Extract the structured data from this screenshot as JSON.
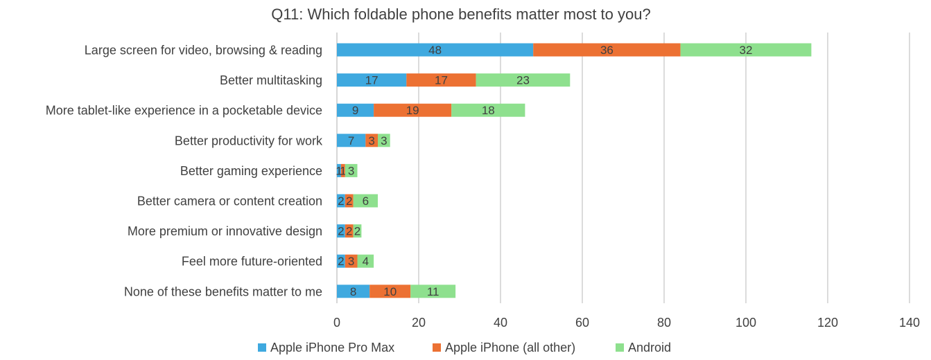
{
  "chart_data": {
    "type": "bar",
    "orientation": "horizontal",
    "stacked": true,
    "title": "Q11: Which foldable phone benefits matter most to you?",
    "xlabel": "",
    "ylabel": "",
    "xlim": [
      0,
      140
    ],
    "xticks": [
      0,
      20,
      40,
      60,
      80,
      100,
      120,
      140
    ],
    "grid": true,
    "legend_position": "bottom",
    "categories": [
      "Large screen for video, browsing & reading",
      "Better multitasking",
      "More tablet-like experience in a pocketable device",
      "Better productivity for work",
      "Better gaming experience",
      "Better camera or content creation",
      "More premium or innovative design",
      "Feel more future-oriented",
      "None of these benefits matter to me"
    ],
    "series": [
      {
        "name": "Apple iPhone Pro Max",
        "color": "#3fa9df",
        "values": [
          48,
          17,
          9,
          7,
          1,
          2,
          2,
          2,
          8
        ]
      },
      {
        "name": "Apple iPhone (all other)",
        "color": "#ec7133",
        "values": [
          36,
          17,
          19,
          3,
          1,
          2,
          2,
          3,
          10
        ]
      },
      {
        "name": "Android",
        "color": "#8ee08e",
        "values": [
          32,
          23,
          18,
          3,
          3,
          6,
          2,
          4,
          11
        ]
      }
    ]
  }
}
